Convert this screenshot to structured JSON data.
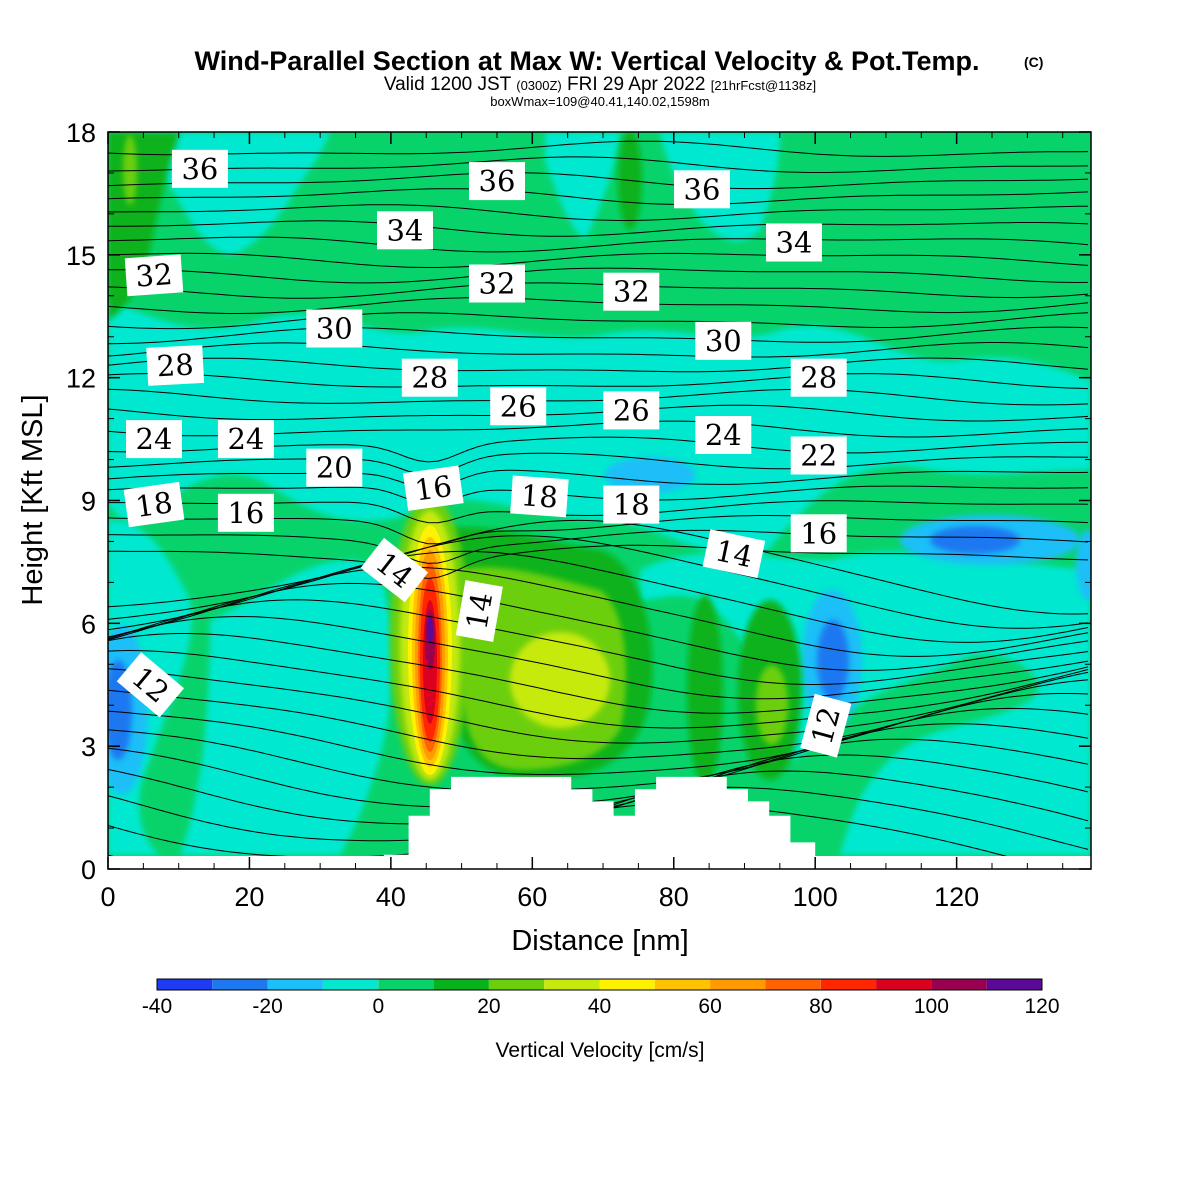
{
  "header": {
    "title": "Wind-Parallel Section at Max W: Vertical Velocity & Pot.Temp.",
    "copyright": "(C)",
    "valid_prefix": "Valid 1200 JST",
    "valid_utc": "(0300Z)",
    "valid_date": "FRI 29 Apr 2022",
    "forecast_info": "[21hrFcst@1138z]",
    "box_info": "boxWmax=109@40.41,140.02,1598m"
  },
  "chart_data": {
    "type": "heatmap",
    "title": "Wind-Parallel Section at Max W: Vertical Velocity & Pot.Temp.",
    "xlabel": "Distance [nm]",
    "ylabel": "Height [Kft MSL]",
    "xlim": [
      0,
      139
    ],
    "ylim": [
      0,
      18
    ],
    "x_ticks": [
      "0",
      "20",
      "40",
      "60",
      "80",
      "100",
      "120"
    ],
    "y_ticks": [
      "0",
      "3",
      "6",
      "9",
      "12",
      "15",
      "18"
    ],
    "colorbar": {
      "label": "Vertical Velocity [cm/s]",
      "tick_labels": [
        "-40",
        "-20",
        "0",
        "20",
        "40",
        "60",
        "80",
        "100",
        "120"
      ],
      "bins": [
        {
          "from": -40,
          "to": -30,
          "color": "#1f3cf4"
        },
        {
          "from": -30,
          "to": -20,
          "color": "#1e78f0"
        },
        {
          "from": -20,
          "to": -10,
          "color": "#1cbff8"
        },
        {
          "from": -10,
          "to": 0,
          "color": "#05e8cf"
        },
        {
          "from": 0,
          "to": 10,
          "color": "#08d36b"
        },
        {
          "from": 10,
          "to": 20,
          "color": "#08b21d"
        },
        {
          "from": 20,
          "to": 30,
          "color": "#6ccf0c"
        },
        {
          "from": 30,
          "to": 40,
          "color": "#c7ea0d"
        },
        {
          "from": 40,
          "to": 50,
          "color": "#fff200"
        },
        {
          "from": 50,
          "to": 60,
          "color": "#ffc300"
        },
        {
          "from": 60,
          "to": 70,
          "color": "#ff9b00"
        },
        {
          "from": 70,
          "to": 80,
          "color": "#ff6200"
        },
        {
          "from": 80,
          "to": 90,
          "color": "#ff2600"
        },
        {
          "from": 90,
          "to": 100,
          "color": "#db0020"
        },
        {
          "from": 100,
          "to": 110,
          "color": "#990050"
        },
        {
          "from": 110,
          "to": 120,
          "color": "#5a0a96"
        }
      ]
    },
    "terrain": [
      [
        39,
        0
      ],
      [
        39,
        0.35
      ],
      [
        42.5,
        0.35
      ],
      [
        42.5,
        1.3
      ],
      [
        45.5,
        1.3
      ],
      [
        45.5,
        1.95
      ],
      [
        48.5,
        1.95
      ],
      [
        48.5,
        2.25
      ],
      [
        65.5,
        2.25
      ],
      [
        65.5,
        1.95
      ],
      [
        68.5,
        1.95
      ],
      [
        68.5,
        1.65
      ],
      [
        71.5,
        1.65
      ],
      [
        71.5,
        1.3
      ],
      [
        74.5,
        1.3
      ],
      [
        74.5,
        1.95
      ],
      [
        77.5,
        1.95
      ],
      [
        77.5,
        2.25
      ],
      [
        87.5,
        2.25
      ],
      [
        87.5,
        1.95
      ],
      [
        90.5,
        1.95
      ],
      [
        90.5,
        1.65
      ],
      [
        93.5,
        1.65
      ],
      [
        93.5,
        1.3
      ],
      [
        96.5,
        1.3
      ],
      [
        96.5,
        0.65
      ],
      [
        100,
        0.65
      ],
      [
        100,
        0
      ],
      [
        139,
        0
      ],
      [
        139,
        -0.1
      ],
      [
        0,
        -0.1
      ],
      [
        0,
        0
      ]
    ],
    "theta_labels": [
      {
        "text": "36",
        "x": 13,
        "y": 17.1,
        "rot": 0
      },
      {
        "text": "36",
        "x": 55,
        "y": 16.8,
        "rot": 0
      },
      {
        "text": "36",
        "x": 84,
        "y": 16.6,
        "rot": 0
      },
      {
        "text": "34",
        "x": 42,
        "y": 15.6,
        "rot": 0
      },
      {
        "text": "34",
        "x": 97,
        "y": 15.3,
        "rot": 0
      },
      {
        "text": "32",
        "x": 6.5,
        "y": 14.5,
        "rot": -4
      },
      {
        "text": "32",
        "x": 55,
        "y": 14.3,
        "rot": 0
      },
      {
        "text": "32",
        "x": 74,
        "y": 14.1,
        "rot": 0
      },
      {
        "text": "30",
        "x": 32,
        "y": 13.2,
        "rot": 0
      },
      {
        "text": "30",
        "x": 87,
        "y": 12.9,
        "rot": 0
      },
      {
        "text": "28",
        "x": 9.5,
        "y": 12.3,
        "rot": -3
      },
      {
        "text": "28",
        "x": 45.5,
        "y": 12.0,
        "rot": 0
      },
      {
        "text": "28",
        "x": 100.5,
        "y": 12.0,
        "rot": 0
      },
      {
        "text": "26",
        "x": 58,
        "y": 11.3,
        "rot": 0
      },
      {
        "text": "26",
        "x": 74,
        "y": 11.2,
        "rot": 0
      },
      {
        "text": "24",
        "x": 6.5,
        "y": 10.5,
        "rot": 0
      },
      {
        "text": "24",
        "x": 19.5,
        "y": 10.5,
        "rot": 0
      },
      {
        "text": "24",
        "x": 87,
        "y": 10.6,
        "rot": 0
      },
      {
        "text": "22",
        "x": 100.5,
        "y": 10.1,
        "rot": 0
      },
      {
        "text": "20",
        "x": 32,
        "y": 9.8,
        "rot": 0
      },
      {
        "text": "18",
        "x": 6.5,
        "y": 8.9,
        "rot": -8
      },
      {
        "text": "18",
        "x": 61,
        "y": 9.1,
        "rot": 4
      },
      {
        "text": "18",
        "x": 74,
        "y": 8.9,
        "rot": 0
      },
      {
        "text": "16",
        "x": 46,
        "y": 9.3,
        "rot": -8
      },
      {
        "text": "16",
        "x": 19.5,
        "y": 8.7,
        "rot": 0
      },
      {
        "text": "16",
        "x": 100.5,
        "y": 8.2,
        "rot": 0
      },
      {
        "text": "14",
        "x": 40.5,
        "y": 7.3,
        "rot": 38
      },
      {
        "text": "14",
        "x": 52.5,
        "y": 6.3,
        "rot": -80
      },
      {
        "text": "14",
        "x": 88.5,
        "y": 7.7,
        "rot": 12
      },
      {
        "text": "12",
        "x": 6,
        "y": 4.5,
        "rot": 40
      },
      {
        "text": "12",
        "x": 101.5,
        "y": 3.5,
        "rot": -75
      }
    ]
  }
}
